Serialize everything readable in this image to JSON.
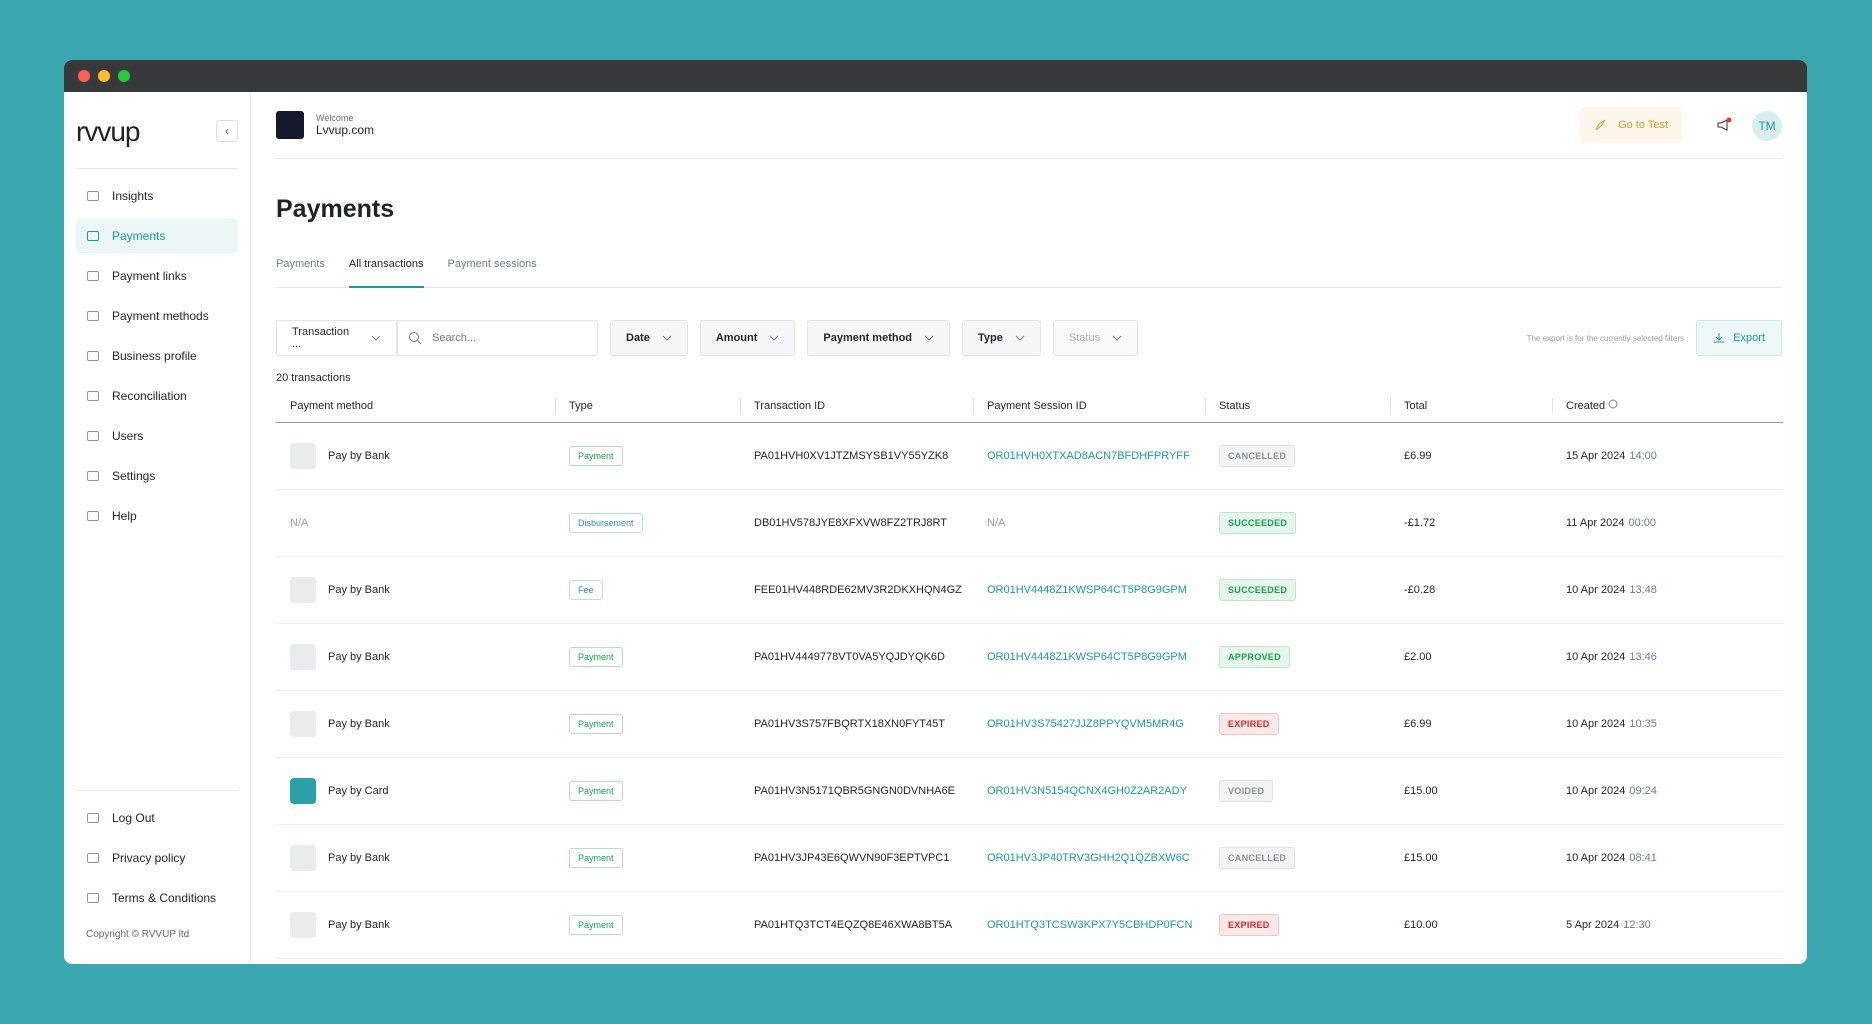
{
  "sidebar": {
    "logo": "rvvup",
    "nav": [
      "Insights",
      "Payments",
      "Payment links",
      "Payment methods",
      "Business profile",
      "Reconciliation",
      "Users",
      "Settings",
      "Help"
    ],
    "active": 1,
    "footer_nav": [
      "Log Out",
      "Privacy policy",
      "Terms & Conditions"
    ],
    "copyright": "Copyright © RVVUP ltd"
  },
  "header": {
    "welcome": "Welcome",
    "merchant": "Lvvup.com",
    "go_to_test": "Go to Test",
    "avatar": "TM"
  },
  "page": {
    "title": "Payments",
    "tabs": [
      "Payments",
      "All transactions",
      "Payment sessions"
    ],
    "active_tab": 1,
    "filters": [
      "Transaction ...",
      "Date",
      "Amount",
      "Payment method",
      "Type",
      "Status"
    ],
    "search_placeholder": "Search...",
    "export_note": "The export is for the currently selected filters",
    "export": "Export",
    "count": "20 transactions"
  },
  "table": {
    "columns": [
      "Payment method",
      "Type",
      "Transaction ID",
      "Payment Session ID",
      "Status",
      "Total",
      "Created"
    ],
    "rows": [
      {
        "method": "Pay by Bank",
        "icon": "bank",
        "type": "Payment",
        "type_color": "#16a34a",
        "transaction_id": "PA01HVH0XV1JTZMSYSB1VY55YZK8",
        "session_id": "OR01HVH0XTXAD8ACN7BFDHFPRYFF",
        "status": "CANCELLED",
        "status_color": "#8a8f98",
        "total": "£6.99",
        "date": "15 Apr 2024",
        "time": "14:00"
      },
      {
        "method": "N/A",
        "icon": null,
        "type": "Disbursement",
        "type_color": "#2f8fd0",
        "transaction_id": "DB01HV578JYE8XFXVW8FZ2TRJ8RT",
        "session_id": "N/A",
        "status": "SUCCEEDED",
        "status_color": "#16a34a",
        "total": "-£1.72",
        "date": "11 Apr 2024",
        "time": "00:00"
      },
      {
        "method": "Pay by Bank",
        "icon": "bank",
        "type": "Fee",
        "type_color": "#2f8fd0",
        "transaction_id": "FEE01HV448RDE62MV3R2DKXHQN4GZ",
        "session_id": "OR01HV4448Z1KWSP64CT5P8G9GPM",
        "status": "SUCCEEDED",
        "status_color": "#16a34a",
        "total": "-£0.28",
        "date": "10 Apr 2024",
        "time": "13:48"
      },
      {
        "method": "Pay by Bank",
        "icon": "bank",
        "type": "Payment",
        "type_color": "#16a34a",
        "transaction_id": "PA01HV4449778VT0VA5YQJDYQK6D",
        "session_id": "OR01HV4448Z1KWSP64CT5P8G9GPM",
        "status": "APPROVED",
        "status_color": "#16a34a",
        "total": "£2.00",
        "date": "10 Apr 2024",
        "time": "13:46"
      },
      {
        "method": "Pay by Bank",
        "icon": "bank",
        "type": "Payment",
        "type_color": "#16a34a",
        "transaction_id": "PA01HV3S757FBQRTX18XN0FYT45T",
        "session_id": "OR01HV3S75427JJZ8PPYQVM5MR4G",
        "status": "EXPIRED",
        "status_color": "#dc2626",
        "total": "£6.99",
        "date": "10 Apr 2024",
        "time": "10:35"
      },
      {
        "method": "Pay by Card",
        "icon": "card",
        "type": "Payment",
        "type_color": "#16a34a",
        "transaction_id": "PA01HV3N5171QBR5GNGN0DVNHA6E",
        "session_id": "OR01HV3N5154QCNX4GH0Z2AR2ADY",
        "status": "VOIDED",
        "status_color": "#8a8f98",
        "total": "£15.00",
        "date": "10 Apr 2024",
        "time": "09:24"
      },
      {
        "method": "Pay by Bank",
        "icon": "bank",
        "type": "Payment",
        "type_color": "#16a34a",
        "transaction_id": "PA01HV3JP43E6QWVN90F3EPTVPC1",
        "session_id": "OR01HV3JP40TRV3GHH2Q1QZBXW6C",
        "status": "CANCELLED",
        "status_color": "#8a8f98",
        "total": "£15.00",
        "date": "10 Apr 2024",
        "time": "08:41"
      },
      {
        "method": "Pay by Bank",
        "icon": "bank",
        "type": "Payment",
        "type_color": "#16a34a",
        "transaction_id": "PA01HTQ3TCT4EQZQ8E46XWA8BT5A",
        "session_id": "OR01HTQ3TCSW3KPX7Y5CBHDP0FCN",
        "status": "EXPIRED",
        "status_color": "#dc2626",
        "total": "£10.00",
        "date": "5 Apr 2024",
        "time": "12:30"
      }
    ]
  }
}
